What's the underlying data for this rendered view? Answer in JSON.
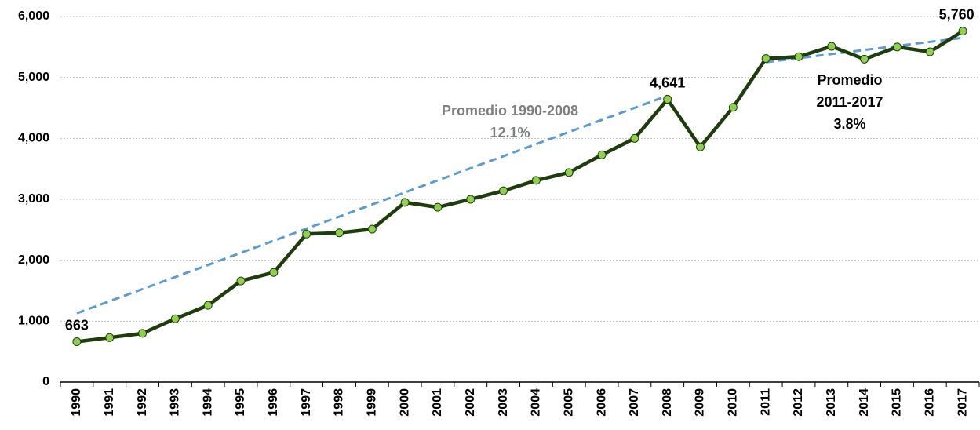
{
  "chart_data": {
    "type": "line",
    "categories": [
      "1990",
      "1991",
      "1992",
      "1993",
      "1994",
      "1995",
      "1996",
      "1997",
      "1998",
      "1999",
      "2000",
      "2001",
      "2002",
      "2003",
      "2004",
      "2005",
      "2006",
      "2007",
      "2008",
      "2009",
      "2010",
      "2011",
      "2012",
      "2013",
      "2014",
      "2015",
      "2016",
      "2017"
    ],
    "series": [
      {
        "color": "#1f3d0c",
        "marker_color": "#8fd14f",
        "values": [
          663,
          730,
          800,
          1040,
          1260,
          1660,
          1800,
          2430,
          2450,
          2510,
          2950,
          2870,
          3000,
          3140,
          3310,
          3440,
          3730,
          4000,
          4641,
          3860,
          4510,
          5310,
          5340,
          5510,
          5300,
          5500,
          5420,
          5760
        ],
        "value_labels": [
          "663",
          null,
          null,
          null,
          null,
          null,
          null,
          null,
          null,
          null,
          null,
          null,
          null,
          null,
          null,
          null,
          null,
          null,
          "4,641",
          null,
          null,
          null,
          null,
          null,
          null,
          null,
          null,
          "5,760"
        ]
      }
    ],
    "trendlines": [
      {
        "x": [
          "1990",
          "2008"
        ],
        "values": [
          1130,
          4700
        ],
        "color": "#5b9bd5",
        "label": [
          "Promedio 1990-2008",
          "12.1%"
        ],
        "label_color": "#7f7f7f"
      },
      {
        "x": [
          "2011",
          "2017"
        ],
        "values": [
          5250,
          5650
        ],
        "color": "#5b9bd5",
        "label": [
          "Promedio",
          "2011-2017",
          "3.8%"
        ],
        "label_color": "#000000"
      }
    ],
    "ylim": [
      0,
      6000
    ],
    "yticks": [
      0,
      {
        "value": 1000,
        "label": "1,000"
      },
      {
        "value": 2000,
        "label": "2,000"
      },
      {
        "value": 3000,
        "label": "3,000"
      },
      {
        "value": 4000,
        "label": "4,000"
      },
      {
        "value": 5000,
        "label": "5,000"
      },
      {
        "value": 6000,
        "label": "6,000"
      }
    ],
    "grid": true
  }
}
